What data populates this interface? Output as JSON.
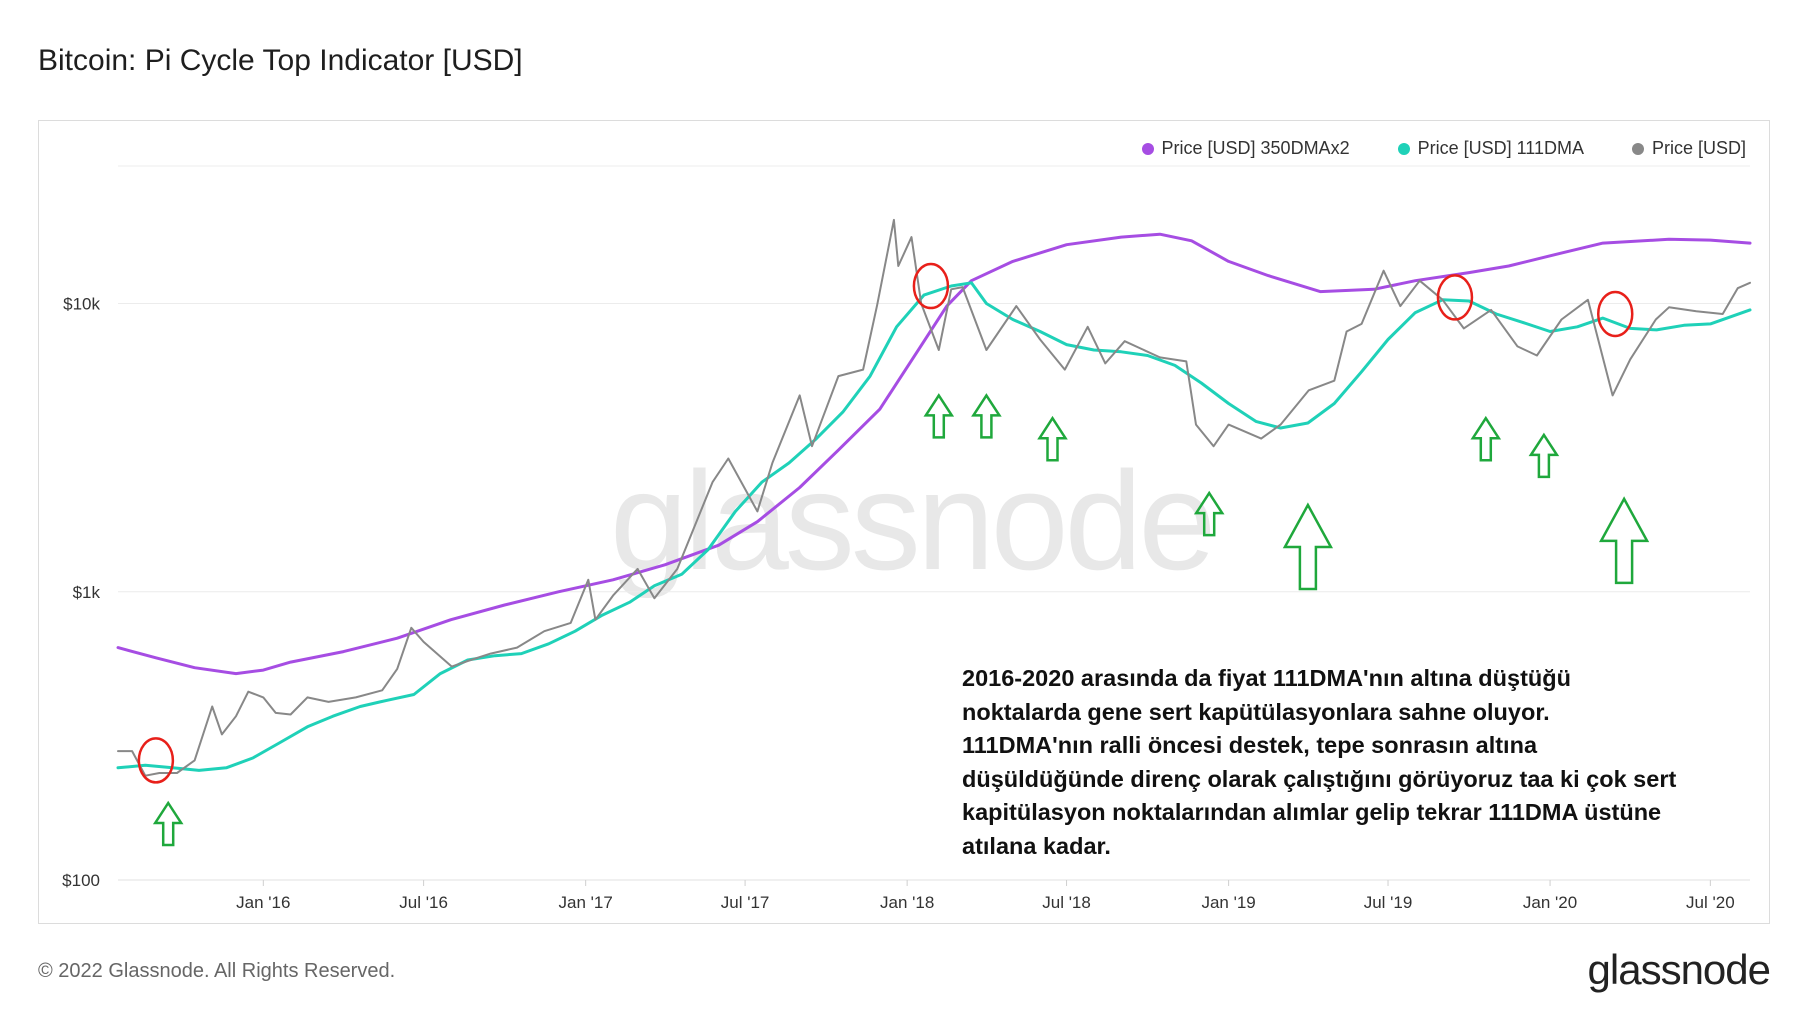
{
  "title": "Bitcoin: Pi Cycle Top Indicator [USD]",
  "footer": "© 2022 Glassnode. All Rights Reserved.",
  "brand": "glassnode",
  "watermark": "glassnode",
  "annotation": "2016-2020 arasında da fiyat 111DMA'nın altına düştüğü noktalarda gene sert kapütülasyonlara sahne oluyor. 111DMA'nın ralli öncesi destek, tepe sonrasın altına düşüldüğünde direnç olarak çalıştığını görüyoruz taa ki çok sert kapitülasyon noktalarından alımlar gelip tekrar 111DMA üstüne atılana kadar.",
  "legend": [
    {
      "label": "Price [USD] 350DMAx2",
      "color": "#a64de3"
    },
    {
      "label": "Price [USD] 111DMA",
      "color": "#1fd1b8"
    },
    {
      "label": "Price [USD]",
      "color": "#888888"
    }
  ],
  "chart_data": {
    "type": "line",
    "yscale": "log",
    "ylim": [
      100,
      30000
    ],
    "xlim": [
      "2015-07-20",
      "2020-08-15"
    ],
    "x_ticks": [
      {
        "date": "2016-01-01",
        "label": "Jan '16"
      },
      {
        "date": "2016-07-01",
        "label": "Jul '16"
      },
      {
        "date": "2017-01-01",
        "label": "Jan '17"
      },
      {
        "date": "2017-07-01",
        "label": "Jul '17"
      },
      {
        "date": "2018-01-01",
        "label": "Jan '18"
      },
      {
        "date": "2018-07-01",
        "label": "Jul '18"
      },
      {
        "date": "2019-01-01",
        "label": "Jan '19"
      },
      {
        "date": "2019-07-01",
        "label": "Jul '19"
      },
      {
        "date": "2020-01-01",
        "label": "Jan '20"
      },
      {
        "date": "2020-07-01",
        "label": "Jul '20"
      }
    ],
    "y_ticks": [
      {
        "value": 100,
        "label": "$100"
      },
      {
        "value": 1000,
        "label": "$1k"
      },
      {
        "value": 10000,
        "label": "$10k"
      }
    ],
    "series": [
      {
        "name": "Price [USD] 350DMAx2",
        "color": "#a64de3",
        "points": [
          [
            "2015-07-20",
            640
          ],
          [
            "2015-09-01",
            590
          ],
          [
            "2015-10-15",
            545
          ],
          [
            "2015-12-01",
            520
          ],
          [
            "2016-01-01",
            535
          ],
          [
            "2016-02-01",
            570
          ],
          [
            "2016-04-01",
            620
          ],
          [
            "2016-06-01",
            690
          ],
          [
            "2016-08-01",
            800
          ],
          [
            "2016-10-01",
            900
          ],
          [
            "2016-12-01",
            1000
          ],
          [
            "2017-02-01",
            1100
          ],
          [
            "2017-04-01",
            1240
          ],
          [
            "2017-06-01",
            1450
          ],
          [
            "2017-07-15",
            1750
          ],
          [
            "2017-09-01",
            2300
          ],
          [
            "2017-10-15",
            3100
          ],
          [
            "2017-12-01",
            4300
          ],
          [
            "2018-01-15",
            7000
          ],
          [
            "2018-02-15",
            9800
          ],
          [
            "2018-03-15",
            12000
          ],
          [
            "2018-05-01",
            14000
          ],
          [
            "2018-07-01",
            16000
          ],
          [
            "2018-09-01",
            17000
          ],
          [
            "2018-10-15",
            17400
          ],
          [
            "2018-11-20",
            16500
          ],
          [
            "2019-01-01",
            14000
          ],
          [
            "2019-02-15",
            12500
          ],
          [
            "2019-04-15",
            11000
          ],
          [
            "2019-06-15",
            11200
          ],
          [
            "2019-08-01",
            12000
          ],
          [
            "2019-10-01",
            12800
          ],
          [
            "2019-11-15",
            13500
          ],
          [
            "2020-01-15",
            15000
          ],
          [
            "2020-03-01",
            16200
          ],
          [
            "2020-05-15",
            16700
          ],
          [
            "2020-07-01",
            16600
          ],
          [
            "2020-08-15",
            16200
          ]
        ]
      },
      {
        "name": "Price [USD] 111DMA",
        "color": "#1fd1b8",
        "points": [
          [
            "2015-07-20",
            245
          ],
          [
            "2015-08-20",
            250
          ],
          [
            "2015-09-20",
            245
          ],
          [
            "2015-10-20",
            240
          ],
          [
            "2015-11-20",
            245
          ],
          [
            "2015-12-20",
            265
          ],
          [
            "2016-01-20",
            300
          ],
          [
            "2016-02-20",
            340
          ],
          [
            "2016-03-20",
            370
          ],
          [
            "2016-04-20",
            400
          ],
          [
            "2016-05-20",
            420
          ],
          [
            "2016-06-20",
            440
          ],
          [
            "2016-07-20",
            520
          ],
          [
            "2016-08-20",
            580
          ],
          [
            "2016-09-20",
            600
          ],
          [
            "2016-10-20",
            610
          ],
          [
            "2016-11-20",
            660
          ],
          [
            "2016-12-20",
            730
          ],
          [
            "2017-01-20",
            830
          ],
          [
            "2017-02-20",
            920
          ],
          [
            "2017-03-20",
            1050
          ],
          [
            "2017-04-20",
            1150
          ],
          [
            "2017-05-20",
            1400
          ],
          [
            "2017-06-20",
            1900
          ],
          [
            "2017-07-20",
            2400
          ],
          [
            "2017-08-20",
            2800
          ],
          [
            "2017-09-20",
            3400
          ],
          [
            "2017-10-20",
            4200
          ],
          [
            "2017-11-20",
            5600
          ],
          [
            "2017-12-20",
            8300
          ],
          [
            "2018-01-20",
            10700
          ],
          [
            "2018-02-20",
            11500
          ],
          [
            "2018-03-15",
            11800
          ],
          [
            "2018-04-01",
            10000
          ],
          [
            "2018-05-01",
            8800
          ],
          [
            "2018-06-01",
            8000
          ],
          [
            "2018-07-01",
            7200
          ],
          [
            "2018-08-01",
            6900
          ],
          [
            "2018-09-01",
            6800
          ],
          [
            "2018-10-01",
            6600
          ],
          [
            "2018-11-01",
            6100
          ],
          [
            "2018-12-01",
            5300
          ],
          [
            "2019-01-01",
            4500
          ],
          [
            "2019-02-01",
            3900
          ],
          [
            "2019-03-01",
            3700
          ],
          [
            "2019-04-01",
            3850
          ],
          [
            "2019-05-01",
            4500
          ],
          [
            "2019-06-01",
            5800
          ],
          [
            "2019-07-01",
            7500
          ],
          [
            "2019-08-01",
            9300
          ],
          [
            "2019-09-01",
            10300
          ],
          [
            "2019-10-01",
            10200
          ],
          [
            "2019-11-01",
            9200
          ],
          [
            "2019-12-01",
            8600
          ],
          [
            "2020-01-01",
            8000
          ],
          [
            "2020-02-01",
            8300
          ],
          [
            "2020-03-01",
            8900
          ],
          [
            "2020-04-01",
            8200
          ],
          [
            "2020-05-01",
            8100
          ],
          [
            "2020-06-01",
            8400
          ],
          [
            "2020-07-01",
            8500
          ],
          [
            "2020-08-15",
            9500
          ]
        ]
      },
      {
        "name": "Price [USD]",
        "color": "#888888",
        "points": [
          [
            "2015-07-20",
            280
          ],
          [
            "2015-08-05",
            280
          ],
          [
            "2015-08-20",
            230
          ],
          [
            "2015-09-05",
            235
          ],
          [
            "2015-09-25",
            235
          ],
          [
            "2015-10-15",
            260
          ],
          [
            "2015-11-04",
            400
          ],
          [
            "2015-11-15",
            320
          ],
          [
            "2015-12-01",
            370
          ],
          [
            "2015-12-15",
            450
          ],
          [
            "2016-01-01",
            430
          ],
          [
            "2016-01-15",
            380
          ],
          [
            "2016-02-01",
            375
          ],
          [
            "2016-02-20",
            430
          ],
          [
            "2016-03-15",
            415
          ],
          [
            "2016-04-15",
            430
          ],
          [
            "2016-05-15",
            455
          ],
          [
            "2016-06-01",
            540
          ],
          [
            "2016-06-17",
            750
          ],
          [
            "2016-07-01",
            670
          ],
          [
            "2016-08-02",
            550
          ],
          [
            "2016-08-20",
            575
          ],
          [
            "2016-09-15",
            610
          ],
          [
            "2016-10-15",
            640
          ],
          [
            "2016-11-15",
            730
          ],
          [
            "2016-12-15",
            780
          ],
          [
            "2017-01-04",
            1100
          ],
          [
            "2017-01-12",
            800
          ],
          [
            "2017-02-01",
            970
          ],
          [
            "2017-03-01",
            1200
          ],
          [
            "2017-03-20",
            950
          ],
          [
            "2017-04-15",
            1200
          ],
          [
            "2017-05-25",
            2400
          ],
          [
            "2017-06-12",
            2900
          ],
          [
            "2017-07-15",
            1900
          ],
          [
            "2017-08-01",
            2800
          ],
          [
            "2017-09-01",
            4800
          ],
          [
            "2017-09-15",
            3200
          ],
          [
            "2017-10-15",
            5600
          ],
          [
            "2017-11-12",
            5900
          ],
          [
            "2017-11-28",
            9900
          ],
          [
            "2017-12-17",
            19500
          ],
          [
            "2017-12-22",
            13500
          ],
          [
            "2018-01-06",
            17000
          ],
          [
            "2018-01-17",
            10000
          ],
          [
            "2018-02-06",
            6900
          ],
          [
            "2018-02-20",
            11200
          ],
          [
            "2018-03-05",
            11400
          ],
          [
            "2018-04-01",
            6900
          ],
          [
            "2018-05-05",
            9800
          ],
          [
            "2018-06-01",
            7500
          ],
          [
            "2018-06-29",
            5900
          ],
          [
            "2018-07-25",
            8300
          ],
          [
            "2018-08-14",
            6200
          ],
          [
            "2018-09-05",
            7400
          ],
          [
            "2018-10-15",
            6500
          ],
          [
            "2018-11-14",
            6300
          ],
          [
            "2018-11-25",
            3800
          ],
          [
            "2018-12-15",
            3200
          ],
          [
            "2019-01-01",
            3800
          ],
          [
            "2019-02-07",
            3400
          ],
          [
            "2019-03-01",
            3800
          ],
          [
            "2019-04-02",
            5000
          ],
          [
            "2019-05-01",
            5400
          ],
          [
            "2019-05-15",
            8000
          ],
          [
            "2019-06-01",
            8500
          ],
          [
            "2019-06-26",
            13000
          ],
          [
            "2019-07-15",
            9800
          ],
          [
            "2019-08-06",
            12000
          ],
          [
            "2019-09-01",
            10300
          ],
          [
            "2019-09-25",
            8200
          ],
          [
            "2019-10-26",
            9500
          ],
          [
            "2019-11-25",
            7100
          ],
          [
            "2019-12-17",
            6600
          ],
          [
            "2020-01-14",
            8800
          ],
          [
            "2020-02-13",
            10300
          ],
          [
            "2020-03-12",
            4800
          ],
          [
            "2020-04-01",
            6400
          ],
          [
            "2020-04-30",
            8800
          ],
          [
            "2020-05-15",
            9700
          ],
          [
            "2020-06-15",
            9400
          ],
          [
            "2020-07-15",
            9200
          ],
          [
            "2020-08-01",
            11300
          ],
          [
            "2020-08-15",
            11800
          ]
        ]
      }
    ],
    "highlight_circles": [
      {
        "date": "2015-09-01",
        "value": 260
      },
      {
        "date": "2018-01-28",
        "value": 11500
      },
      {
        "date": "2019-09-15",
        "value": 10500
      },
      {
        "date": "2020-03-15",
        "value": 9200
      }
    ],
    "buy_arrows": [
      {
        "date": "2015-09-15",
        "value": 185,
        "size": "small"
      },
      {
        "date": "2018-02-06",
        "value": 4800,
        "size": "small"
      },
      {
        "date": "2018-04-01",
        "value": 4800,
        "size": "small"
      },
      {
        "date": "2018-06-15",
        "value": 4000,
        "size": "small"
      },
      {
        "date": "2018-12-10",
        "value": 2200,
        "size": "small"
      },
      {
        "date": "2019-04-01",
        "value": 2000,
        "size": "large"
      },
      {
        "date": "2019-10-20",
        "value": 4000,
        "size": "small"
      },
      {
        "date": "2019-12-25",
        "value": 3500,
        "size": "small"
      },
      {
        "date": "2020-03-25",
        "value": 2100,
        "size": "large"
      }
    ]
  }
}
